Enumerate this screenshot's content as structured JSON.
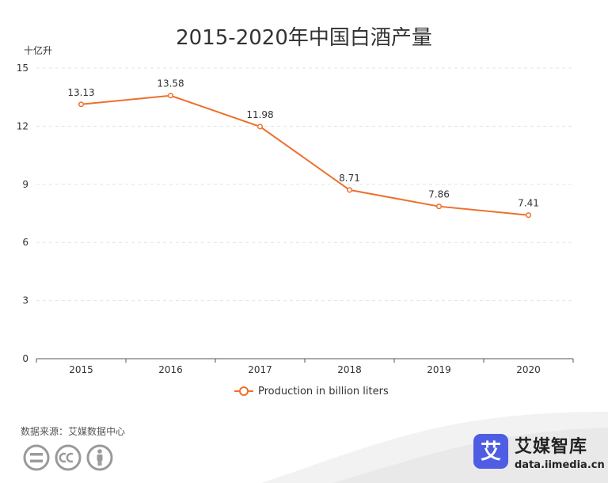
{
  "chart_data": {
    "type": "line",
    "title": "2015-2020年中国白酒产量",
    "ylabel": "十亿升",
    "xlabel": "",
    "categories": [
      "2015",
      "2016",
      "2017",
      "2018",
      "2019",
      "2020"
    ],
    "series": [
      {
        "name": "Production in billion liters",
        "values": [
          13.13,
          13.58,
          11.98,
          8.71,
          7.86,
          7.41
        ]
      }
    ],
    "data_labels": [
      "13.13",
      "13.58",
      "11.98",
      "8.71",
      "7.86",
      "7.41"
    ],
    "ylim": [
      0,
      15
    ],
    "yticks": [
      0,
      3,
      6,
      9,
      12,
      15
    ],
    "grid": true,
    "legend_position": "bottom-center"
  },
  "footer": {
    "source": "数据来源：艾媒数据中心",
    "brand_logo_char": "艾",
    "brand_name": "艾媒智库",
    "brand_url": "data.iimedia.cn"
  },
  "colors": {
    "series": "#ee6f2d",
    "grid": "#e3e3e3",
    "axis": "#555555",
    "brand_blue": "#4f5de4"
  },
  "icons": [
    "cc-equals-icon",
    "cc-cc-icon",
    "cc-person-icon"
  ]
}
